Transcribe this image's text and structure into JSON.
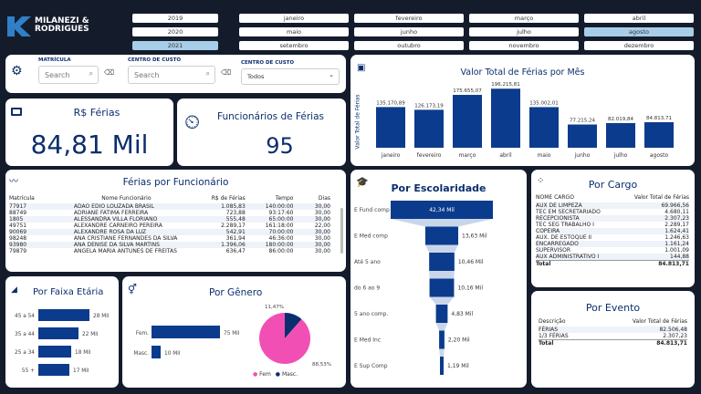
{
  "brand": {
    "line1": "MILANEZI &",
    "line2": "RODRIGUES"
  },
  "years": [
    {
      "label": "2019",
      "selected": false
    },
    {
      "label": "2020",
      "selected": false
    },
    {
      "label": "2021",
      "selected": true
    }
  ],
  "months": [
    {
      "label": "janeiro",
      "selected": false
    },
    {
      "label": "fevereiro",
      "selected": false
    },
    {
      "label": "março",
      "selected": false
    },
    {
      "label": "abril",
      "selected": false
    },
    {
      "label": "maio",
      "selected": false
    },
    {
      "label": "junho",
      "selected": false
    },
    {
      "label": "julho",
      "selected": false
    },
    {
      "label": "agosto",
      "selected": true
    },
    {
      "label": "setembro",
      "selected": false
    },
    {
      "label": "outubro",
      "selected": false
    },
    {
      "label": "novembro",
      "selected": false
    },
    {
      "label": "dezembro",
      "selected": false
    }
  ],
  "filters": {
    "matricula": {
      "label": "MATRÍCULA",
      "placeholder": "Search"
    },
    "centro1": {
      "label": "CENTRO DE CUSTO",
      "placeholder": "Search"
    },
    "centro2": {
      "label": "CENTRO DE CUSTO",
      "value": "Todos"
    }
  },
  "kpi": {
    "ferias": {
      "title": "R$ Férias",
      "value": "84,81 Mil"
    },
    "func": {
      "title": "Funcionários de Férias",
      "value": "95"
    }
  },
  "monthly": {
    "title": "Valor Total de Férias por Mês",
    "ylabel": "Valor Total de Férias",
    "chart_data": {
      "type": "bar",
      "categories": [
        "janeiro",
        "fevereiro",
        "março",
        "abril",
        "maio",
        "junho",
        "julho",
        "agosto"
      ],
      "values": [
        135170.89,
        126173.19,
        175655.07,
        196215.81,
        135002.01,
        77215.24,
        82019.84,
        84813.71
      ],
      "labels": [
        "135.170,89",
        "126.173,19",
        "175.655,07",
        "196.215,81",
        "135.002,01",
        "77.215,24",
        "82.019,84",
        "84.813,71"
      ]
    }
  },
  "funcionarios": {
    "title": "Férias por Funcionário",
    "headers": [
      "Matrícula",
      "Nome Funcionário",
      "R$ de Férias",
      "Tempo",
      "Dias"
    ],
    "rows": [
      [
        "77917",
        "ADAO EDIO LOUZADA BRASIL",
        "1.085,83",
        "140:00:00",
        "30,00"
      ],
      [
        "88749",
        "ADRIANE FATIMA FERREIRA",
        "723,88",
        "93:17:60",
        "30,00"
      ],
      [
        "1805",
        "ALESSANDRA VILLA FLORIANO",
        "555,48",
        "65:00:00",
        "30,00"
      ],
      [
        "49751",
        "ALEXANDRE CARNEIRO PEREIRA",
        "2.289,17",
        "161:18:00",
        "22,00"
      ],
      [
        "90069",
        "ALEXANDRE ROSA DA LUZ",
        "542,91",
        "70:00:00",
        "30,00"
      ],
      [
        "98248",
        "ANA CRISTIANE FERNANDES DA SILVA",
        "361,94",
        "46:36:00",
        "30,00"
      ],
      [
        "93980",
        "ANA DENISE DA SILVA MARTINS",
        "1.396,06",
        "180:00:00",
        "30,00"
      ],
      [
        "79879",
        "ANGELA MARIA ANTUNES DE FREITAS",
        "636,47",
        "86:00:00",
        "30,00"
      ]
    ]
  },
  "escolaridade": {
    "title": "Por Escolaridade",
    "chart_data": {
      "type": "bar",
      "categories": [
        "E Fund comp",
        "E Med comp",
        "Até 5 ano",
        "do 6 ao 9",
        "5 ano comp.",
        "E Med Inc",
        "E Sup Comp"
      ],
      "values": [
        42.34,
        13.63,
        10.46,
        10.16,
        4.83,
        2.2,
        1.19
      ],
      "labels": [
        "42,34 Mil",
        "13,63 Mil",
        "10,46 Mil",
        "10,16 Mil",
        "4,83 Mil",
        "2,20 Mil",
        "1,19 Mil"
      ]
    }
  },
  "cargo": {
    "title": "Por Cargo",
    "headers": [
      "NOME CARGO",
      "Valor Total de Férias"
    ],
    "rows": [
      [
        "AUX DE LIMPEZA",
        "69.966,56"
      ],
      [
        "TEC EM SECRETARIADO",
        "4.680,11"
      ],
      [
        "RECEPCIONISTA",
        "2.307,23"
      ],
      [
        "TEC SEG TRABALHO I",
        "2.289,17"
      ],
      [
        "COPEIRA",
        "1.624,41"
      ],
      [
        "AUX. DE ESTOQUE II",
        "1.246,63"
      ],
      [
        "ENCARREGADO",
        "1.161,24"
      ],
      [
        "SUPERVISOR",
        "1.001,09"
      ],
      [
        "AUX ADMINISTRATIVO I",
        "144,88"
      ]
    ],
    "total": [
      "Total",
      "84.813,71"
    ]
  },
  "evento": {
    "title": "Por Evento",
    "headers": [
      "Descrição",
      "Valor Total de Férias"
    ],
    "rows": [
      [
        "FÉRIAS",
        "82.506,48"
      ],
      [
        "1/3 FÉRIAS",
        "2.307,23"
      ]
    ],
    "total": [
      "Total",
      "84.813,71"
    ]
  },
  "faixa": {
    "title": "Por Faixa Etária",
    "chart_data": {
      "type": "bar",
      "categories": [
        "45 a 54",
        "35 a 44",
        "25 a 34",
        "55 +"
      ],
      "values": [
        28,
        22,
        18,
        17
      ],
      "labels": [
        "28 Mil",
        "22 Mil",
        "18 Mil",
        "17 Mil"
      ]
    }
  },
  "genero": {
    "title": "Por Gênero",
    "bars": {
      "type": "bar",
      "categories": [
        "Fem.",
        "Masc."
      ],
      "values": [
        75,
        10
      ],
      "labels": [
        "75 Mil",
        "10 Mil"
      ]
    },
    "pie": {
      "type": "pie",
      "values": [
        88.53,
        11.47
      ],
      "labels": [
        "88,53%",
        "11,47%"
      ],
      "legend": [
        "Fem",
        "Masc."
      ],
      "colors": [
        "#f24fb5",
        "#0b2e6e"
      ]
    }
  },
  "colors": {
    "navy": "#0b2e6e",
    "bar": "#0b3b8c",
    "pink": "#f24fb5",
    "bg": "#141c2c"
  }
}
